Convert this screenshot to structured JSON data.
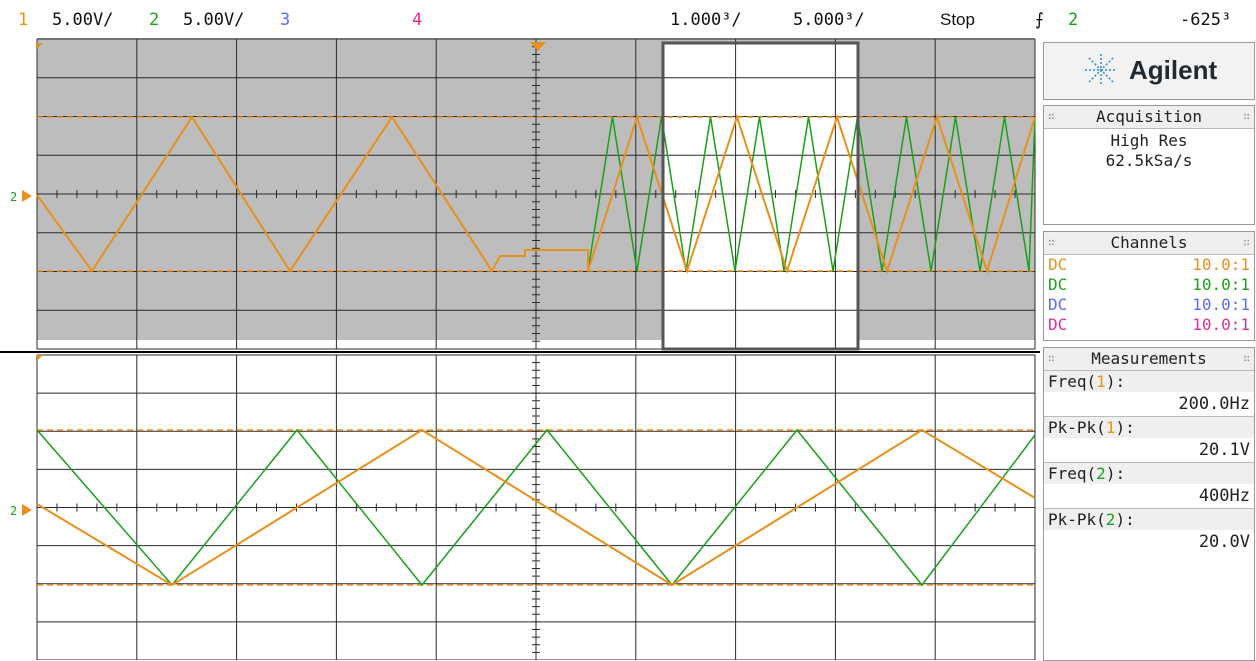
{
  "topbar": {
    "ch1_label": "1",
    "ch1_scale": "5.00V/",
    "ch2_label": "2",
    "ch2_scale": "5.00V/",
    "ch3_label": "3",
    "ch4_label": "4",
    "zoom_timebase": "1.000³/",
    "main_timebase": "5.000³/",
    "run_state": "Stop",
    "trigger_source": "2",
    "trigger_level": "-625³"
  },
  "colors": {
    "ch1": "#e8901c",
    "ch2": "#1aa01a",
    "ch3": "#5a6ef0",
    "ch4": "#e0308f",
    "grid": "#2a2a2a",
    "zoom_bg": "#bdbdbd"
  },
  "scope": {
    "upper_marker": "2",
    "lower_marker": "2"
  },
  "panel": {
    "brand": "Agilent",
    "acquisition": {
      "title": "Acquisition",
      "mode": "High Res",
      "rate": "62.5kSa/s"
    },
    "channels": {
      "title": "Channels",
      "rows": [
        {
          "coupling": "DC",
          "probe": "10.0:1"
        },
        {
          "coupling": "DC",
          "probe": "10.0:1"
        },
        {
          "coupling": "DC",
          "probe": "10.0:1"
        },
        {
          "coupling": "DC",
          "probe": "10.0:1"
        }
      ]
    },
    "measurements": {
      "title": "Measurements",
      "items": [
        {
          "name": "Freq(",
          "ch": "1",
          "suffix": "):",
          "value": "200.0Hz"
        },
        {
          "name": "Pk-Pk(",
          "ch": "1",
          "suffix": "):",
          "value": "20.1V"
        },
        {
          "name": "Freq(",
          "ch": "2",
          "suffix": "):",
          "value": "400Hz"
        },
        {
          "name": "Pk-Pk(",
          "ch": "2",
          "suffix": "):",
          "value": "20.0V"
        }
      ]
    }
  }
}
